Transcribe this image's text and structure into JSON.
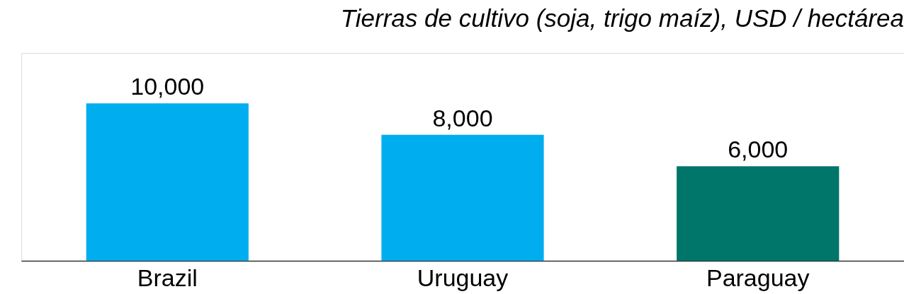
{
  "chart_data": {
    "type": "bar",
    "title": "Tierras de cultivo (soja, trigo maíz), USD / hectárea",
    "categories": [
      "Brazil",
      "Uruguay",
      "Paraguay"
    ],
    "values": [
      10000,
      8000,
      6000
    ],
    "value_labels": [
      "10,000",
      "8,000",
      "6,000"
    ],
    "colors": [
      "#00aeef",
      "#00aeef",
      "#00756a"
    ]
  }
}
